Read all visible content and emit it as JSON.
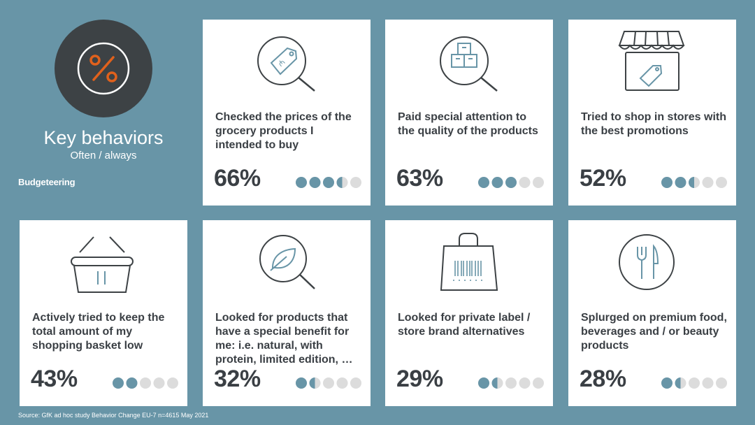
{
  "header": {
    "title": "Key behaviors",
    "subtitle": "Often / always",
    "section": "Budgeteering",
    "icon": "percent-icon"
  },
  "footer": {
    "source": "Source: GfK ad hoc study Behavior Change EU-7 n=4615 May 2021"
  },
  "colors": {
    "background": "#6895a7",
    "dot_filled": "#6895a7",
    "dot_empty": "#dcdcdc",
    "accent_orange": "#e0611c",
    "dark": "#3d4245"
  },
  "cards": [
    {
      "icon": "price-tag-magnifier-icon",
      "label": "Checked the prices of the grocery products I intended to buy",
      "percent": "66%",
      "value": 66
    },
    {
      "icon": "boxes-magnifier-icon",
      "label": "Paid special attention to the quality of the products",
      "percent": "63%",
      "value": 63
    },
    {
      "icon": "storefront-price-tag-icon",
      "label": "Tried to shop in stores with the best promotions",
      "percent": "52%",
      "value": 52
    },
    {
      "icon": "shopping-basket-icon",
      "label": "Actively tried to keep the total amount of my shopping basket low",
      "percent": "43%",
      "value": 43
    },
    {
      "icon": "leaf-magnifier-icon",
      "label": "Looked for products that have a special benefit for me: i.e. natural, with protein, limited edition, …",
      "percent": "32%",
      "value": 32
    },
    {
      "icon": "barcode-bag-icon",
      "label": "Looked for private label / store brand alternatives",
      "percent": "29%",
      "value": 29
    },
    {
      "icon": "fork-knife-icon",
      "label": "Splurged on premium food, beverages and / or beauty products",
      "percent": "28%",
      "value": 28
    }
  ]
}
